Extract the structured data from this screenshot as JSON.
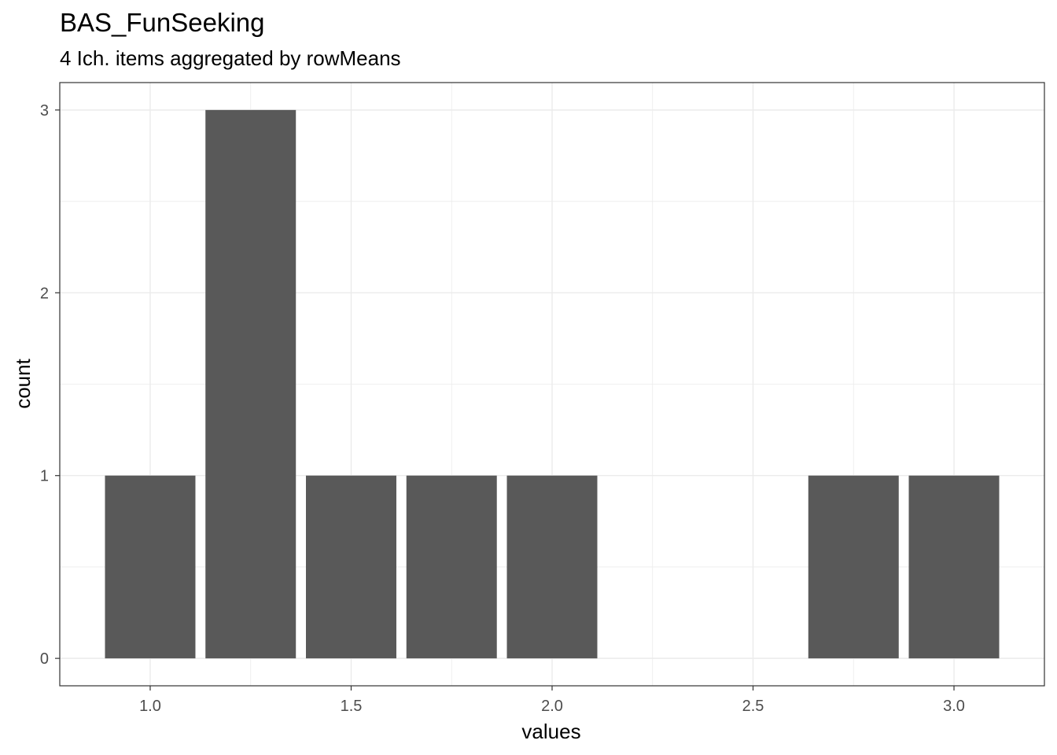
{
  "chart_data": {
    "type": "bar",
    "title": "BAS_FunSeeking",
    "subtitle": "4 Ich. items aggregated by rowMeans",
    "xlabel": "values",
    "ylabel": "count",
    "x": [
      1.0,
      1.25,
      1.5,
      1.75,
      2.0,
      2.75,
      3.0
    ],
    "values": [
      1,
      3,
      1,
      1,
      1,
      1,
      1
    ],
    "bar_width": 0.225,
    "xlim": [
      0.775,
      3.225
    ],
    "ylim": [
      -0.15,
      3.15
    ],
    "x_ticks": [
      1.0,
      1.5,
      2.0,
      2.5,
      3.0
    ],
    "x_tick_labels": [
      "1.0",
      "1.5",
      "2.0",
      "2.5",
      "3.0"
    ],
    "y_ticks": [
      0,
      1,
      2,
      3
    ],
    "y_tick_labels": [
      "0",
      "1",
      "2",
      "3"
    ],
    "grid": true,
    "bar_color": "#595959",
    "grid_color": "#ebebeb",
    "panel_border_color": "#333333"
  }
}
